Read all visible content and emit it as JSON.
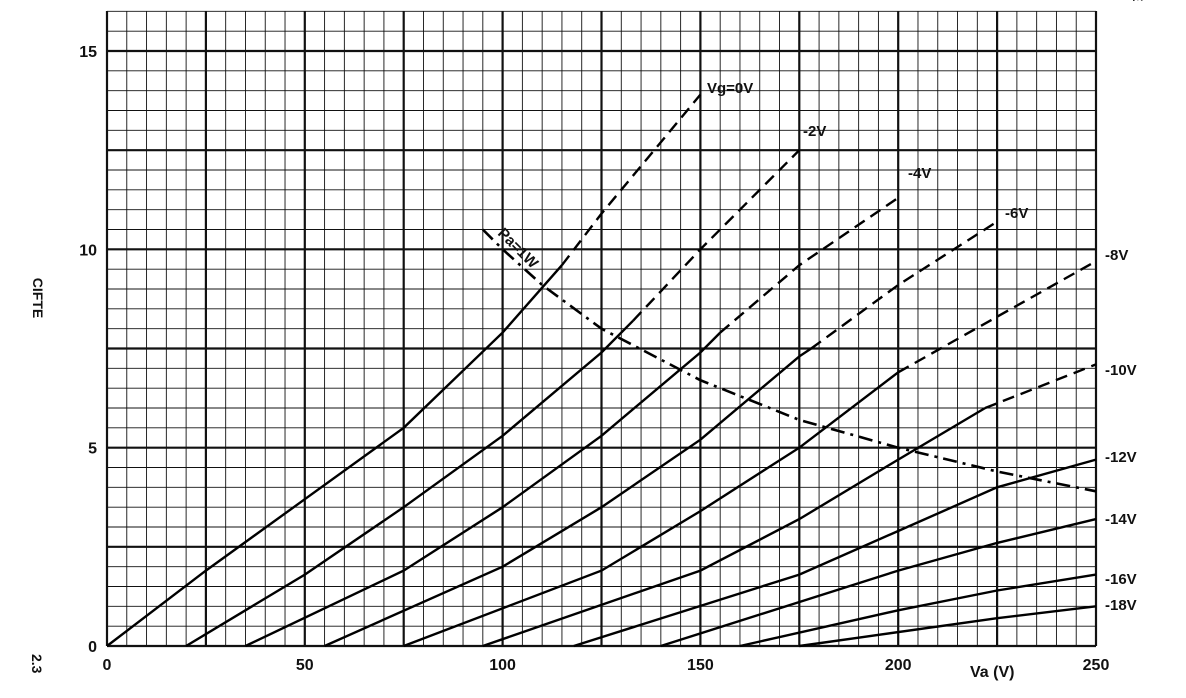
{
  "chart_data": {
    "type": "line",
    "xlabel": "Va (V)",
    "ylabel": "CIFTE",
    "corner_text": "DE",
    "bottom_left_text": "2.3",
    "xlim": [
      0,
      250
    ],
    "ylim": [
      0,
      16.5
    ],
    "x_ticks": [
      0,
      50,
      100,
      150,
      200,
      250
    ],
    "y_ticks": [
      0,
      5,
      10,
      15
    ],
    "grid": true,
    "series": [
      {
        "name": "Vg=0V",
        "points": [
          [
            0,
            0
          ],
          [
            25,
            1.9
          ],
          [
            50,
            3.7
          ],
          [
            75,
            5.5
          ],
          [
            100,
            7.9
          ],
          [
            115,
            9.6
          ],
          [
            125,
            10.9
          ],
          [
            150,
            13.9
          ]
        ]
      },
      {
        "name": "-2V",
        "points": [
          [
            20,
            0
          ],
          [
            50,
            1.8
          ],
          [
            75,
            3.5
          ],
          [
            100,
            5.3
          ],
          [
            125,
            7.4
          ],
          [
            133,
            8.2
          ],
          [
            150,
            10.0
          ],
          [
            175,
            12.5
          ]
        ]
      },
      {
        "name": "-4V",
        "points": [
          [
            35,
            0
          ],
          [
            75,
            1.9
          ],
          [
            100,
            3.5
          ],
          [
            125,
            5.3
          ],
          [
            150,
            7.4
          ],
          [
            155,
            7.9
          ],
          [
            175,
            9.6
          ],
          [
            200,
            11.3
          ]
        ]
      },
      {
        "name": "-6V",
        "points": [
          [
            55,
            0
          ],
          [
            100,
            2.0
          ],
          [
            125,
            3.5
          ],
          [
            150,
            5.2
          ],
          [
            175,
            7.3
          ],
          [
            178,
            7.5
          ],
          [
            200,
            9.1
          ],
          [
            225,
            10.7
          ]
        ]
      },
      {
        "name": "-8V",
        "points": [
          [
            75,
            0
          ],
          [
            125,
            1.9
          ],
          [
            150,
            3.4
          ],
          [
            175,
            5.0
          ],
          [
            200,
            6.9
          ],
          [
            250,
            9.7
          ]
        ]
      },
      {
        "name": "-10V",
        "points": [
          [
            95,
            0
          ],
          [
            150,
            1.9
          ],
          [
            175,
            3.2
          ],
          [
            200,
            4.7
          ],
          [
            222,
            6.0
          ],
          [
            250,
            7.1
          ]
        ]
      },
      {
        "name": "-12V",
        "points": [
          [
            118,
            0
          ],
          [
            175,
            1.8
          ],
          [
            200,
            2.9
          ],
          [
            225,
            4.0
          ],
          [
            250,
            4.7
          ]
        ]
      },
      {
        "name": "-14V",
        "points": [
          [
            140,
            0
          ],
          [
            200,
            1.9
          ],
          [
            225,
            2.6
          ],
          [
            250,
            3.2
          ]
        ]
      },
      {
        "name": "-16V",
        "points": [
          [
            160,
            0
          ],
          [
            200,
            0.9
          ],
          [
            225,
            1.4
          ],
          [
            250,
            1.8
          ]
        ]
      },
      {
        "name": "-18V",
        "points": [
          [
            175,
            0
          ],
          [
            225,
            0.7
          ],
          [
            250,
            1.0
          ]
        ]
      },
      {
        "name": "Pa=1W",
        "points": [
          [
            95,
            10.5
          ],
          [
            100,
            10.0
          ],
          [
            110,
            9.1
          ],
          [
            125,
            8.0
          ],
          [
            150,
            6.7
          ],
          [
            175,
            5.7
          ],
          [
            200,
            5.0
          ],
          [
            225,
            4.4
          ],
          [
            250,
            3.9
          ]
        ]
      }
    ],
    "cutoffs": [
      115,
      133,
      155,
      178,
      200,
      222,
      250,
      250,
      250,
      250
    ]
  }
}
